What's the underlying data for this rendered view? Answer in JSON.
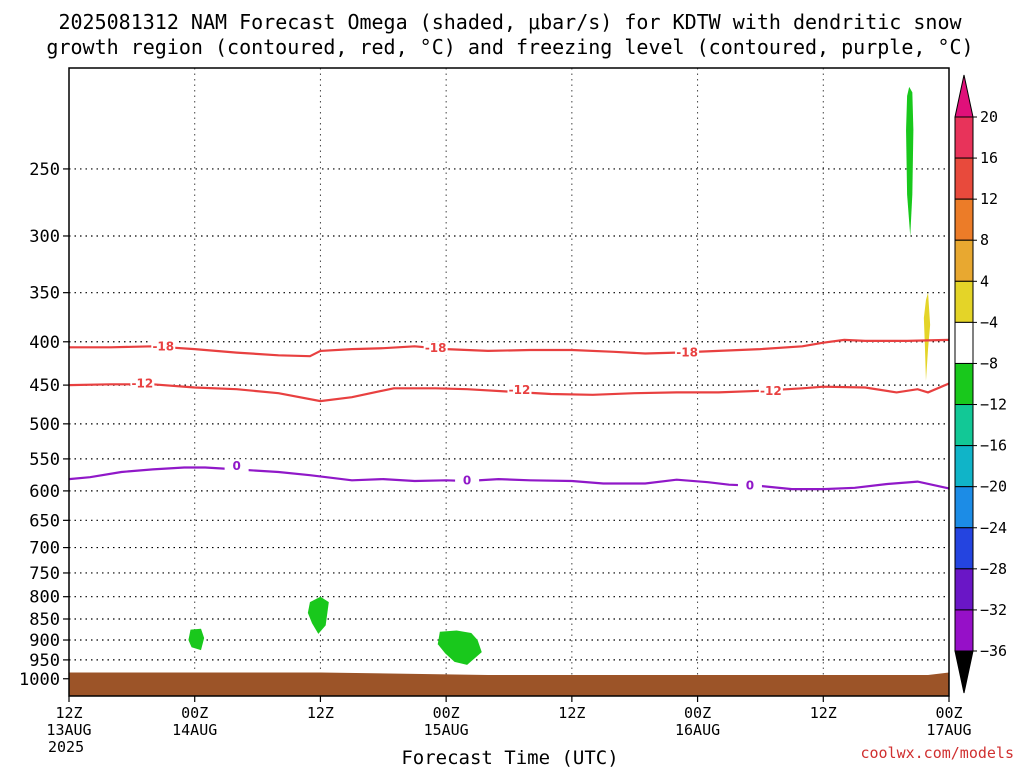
{
  "chart_data": {
    "type": "heatmap",
    "title_lines": [
      "2025081312 NAM Forecast Omega (shaded, μbar/s) for KDTW with dendritic snow",
      "growth region (contoured, red, °C) and freezing level (contoured, purple, °C)"
    ],
    "xlabel": "Forecast Time (UTC)",
    "credit": "coolwx.com/models",
    "x_range_hours": [
      0,
      84
    ],
    "y_log_pressure": true,
    "y_range_hPa": [
      1048,
      190
    ],
    "yticks": [
      {
        "p": 250,
        "label": "250"
      },
      {
        "p": 300,
        "label": "300"
      },
      {
        "p": 350,
        "label": "350"
      },
      {
        "p": 400,
        "label": "400"
      },
      {
        "p": 450,
        "label": "450"
      },
      {
        "p": 500,
        "label": "500"
      },
      {
        "p": 550,
        "label": "550"
      },
      {
        "p": 600,
        "label": "600"
      },
      {
        "p": 650,
        "label": "650"
      },
      {
        "p": 700,
        "label": "700"
      },
      {
        "p": 750,
        "label": "750"
      },
      {
        "p": 800,
        "label": "800"
      },
      {
        "p": 850,
        "label": "850"
      },
      {
        "p": 900,
        "label": "900"
      },
      {
        "p": 950,
        "label": "950"
      },
      {
        "p": 1000,
        "label": "1000"
      }
    ],
    "xticks": [
      {
        "h": 0,
        "lines": [
          "12Z",
          "13AUG",
          "2025"
        ]
      },
      {
        "h": 12,
        "lines": [
          "00Z",
          "14AUG"
        ]
      },
      {
        "h": 24,
        "lines": [
          "12Z"
        ]
      },
      {
        "h": 36,
        "lines": [
          "00Z",
          "15AUG"
        ]
      },
      {
        "h": 48,
        "lines": [
          "12Z"
        ]
      },
      {
        "h": 60,
        "lines": [
          "00Z",
          "16AUG"
        ]
      },
      {
        "h": 72,
        "lines": [
          "12Z"
        ]
      },
      {
        "h": 84,
        "lines": [
          "00Z",
          "17AUG"
        ]
      }
    ],
    "colorbar": {
      "levels": [
        {
          "label": "20",
          "color": "#e8335a"
        },
        {
          "label": "16",
          "color": "#e84a3c"
        },
        {
          "label": "12",
          "color": "#ec7c28"
        },
        {
          "label": "8",
          "color": "#e8a830"
        },
        {
          "label": "4",
          "color": "#e4d428"
        },
        {
          "label": "−4",
          "color": "#ffffff"
        },
        {
          "label": "−8",
          "color": "#19c81c"
        },
        {
          "label": "−12",
          "color": "#12c896"
        },
        {
          "label": "−16",
          "color": "#10b4c8"
        },
        {
          "label": "−20",
          "color": "#1c8ce6"
        },
        {
          "label": "−24",
          "color": "#2444e0"
        },
        {
          "label": "−28",
          "color": "#6a16c6"
        },
        {
          "label": "−32",
          "color": "#9610c8"
        },
        {
          "label": "−36",
          "color": "#a8a8a8"
        }
      ],
      "top_arrow_color": "#e0107a",
      "bottom_arrow_color": "#000000"
    },
    "series": [
      {
        "name": "-18",
        "color": "#e84040",
        "label_points": [
          [
            9,
            405
          ],
          [
            35,
            407
          ],
          [
            59,
            412
          ]
        ],
        "points": [
          [
            0,
            406
          ],
          [
            4,
            406
          ],
          [
            8,
            405
          ],
          [
            12,
            408
          ],
          [
            16,
            412
          ],
          [
            20,
            415
          ],
          [
            23,
            416
          ],
          [
            24,
            410
          ],
          [
            27,
            408
          ],
          [
            30,
            407
          ],
          [
            33,
            405
          ],
          [
            36,
            408
          ],
          [
            40,
            410
          ],
          [
            44,
            409
          ],
          [
            48,
            409
          ],
          [
            52,
            411
          ],
          [
            55,
            413
          ],
          [
            58,
            412
          ],
          [
            62,
            410
          ],
          [
            66,
            408
          ],
          [
            70,
            405
          ],
          [
            72,
            401
          ],
          [
            74,
            398
          ],
          [
            76,
            399
          ],
          [
            80,
            399
          ],
          [
            84,
            398
          ]
        ]
      },
      {
        "name": "-12",
        "color": "#e84040",
        "label_points": [
          [
            7,
            448
          ],
          [
            43,
            456
          ],
          [
            67,
            457
          ]
        ],
        "points": [
          [
            0,
            450
          ],
          [
            4,
            449
          ],
          [
            8,
            449
          ],
          [
            12,
            453
          ],
          [
            16,
            455
          ],
          [
            20,
            460
          ],
          [
            24,
            470
          ],
          [
            27,
            465
          ],
          [
            31,
            454
          ],
          [
            35,
            454
          ],
          [
            38,
            455
          ],
          [
            42,
            458
          ],
          [
            46,
            461
          ],
          [
            50,
            462
          ],
          [
            54,
            460
          ],
          [
            58,
            459
          ],
          [
            62,
            459
          ],
          [
            66,
            457
          ],
          [
            70,
            454
          ],
          [
            72,
            452
          ],
          [
            76,
            453
          ],
          [
            79,
            459
          ],
          [
            81,
            455
          ],
          [
            82,
            459
          ],
          [
            84,
            448
          ]
        ]
      },
      {
        "name": "0",
        "color": "#9018c8",
        "label_points": [
          [
            16,
            561
          ],
          [
            38,
            583
          ],
          [
            65,
            591
          ]
        ],
        "points": [
          [
            0,
            581
          ],
          [
            2,
            578
          ],
          [
            5,
            570
          ],
          [
            8,
            566
          ],
          [
            11,
            563
          ],
          [
            13,
            563
          ],
          [
            16,
            566
          ],
          [
            20,
            570
          ],
          [
            23,
            575
          ],
          [
            27,
            583
          ],
          [
            30,
            581
          ],
          [
            33,
            584
          ],
          [
            36,
            583
          ],
          [
            38,
            584
          ],
          [
            41,
            581
          ],
          [
            44,
            583
          ],
          [
            48,
            584
          ],
          [
            51,
            588
          ],
          [
            55,
            588
          ],
          [
            58,
            582
          ],
          [
            61,
            586
          ],
          [
            63,
            590
          ],
          [
            66,
            592
          ],
          [
            69,
            597
          ],
          [
            72,
            597
          ],
          [
            75,
            595
          ],
          [
            78,
            589
          ],
          [
            81,
            585
          ],
          [
            84,
            596
          ]
        ]
      }
    ],
    "omega_blobs": [
      {
        "level": "−8",
        "color": "#19c81c",
        "points": [
          [
            11.6,
            875
          ],
          [
            12.6,
            873
          ],
          [
            12.9,
            895
          ],
          [
            12.6,
            925
          ],
          [
            11.7,
            918
          ],
          [
            11.4,
            900
          ]
        ]
      },
      {
        "level": "−8",
        "color": "#19c81c",
        "points": [
          [
            23.0,
            812
          ],
          [
            24.0,
            800
          ],
          [
            24.8,
            812
          ],
          [
            24.5,
            865
          ],
          [
            23.8,
            885
          ],
          [
            23.2,
            860
          ],
          [
            22.8,
            836
          ]
        ]
      },
      {
        "level": "−8",
        "color": "#19c81c",
        "points": [
          [
            35.4,
            880
          ],
          [
            37.0,
            877
          ],
          [
            38.4,
            883
          ],
          [
            39.0,
            900
          ],
          [
            39.4,
            930
          ],
          [
            38.0,
            963
          ],
          [
            36.8,
            955
          ],
          [
            35.9,
            933
          ],
          [
            35.2,
            910
          ]
        ]
      },
      {
        "level": "−8",
        "color": "#19c81c",
        "points": [
          [
            80.2,
            200
          ],
          [
            80.5,
            203
          ],
          [
            80.6,
            225
          ],
          [
            80.5,
            268
          ],
          [
            80.3,
            300
          ],
          [
            80.0,
            268
          ],
          [
            79.9,
            225
          ],
          [
            80.0,
            205
          ]
        ]
      },
      {
        "level": "4",
        "color": "#e4d428",
        "points": [
          [
            81.8,
            357
          ],
          [
            82.0,
            350
          ],
          [
            82.2,
            382
          ],
          [
            82.0,
            408
          ],
          [
            81.8,
            445
          ],
          [
            81.7,
            405
          ],
          [
            81.6,
            375
          ]
        ]
      }
    ],
    "surface_fill": {
      "color": "#9c5428",
      "top_points": [
        [
          0,
          983
        ],
        [
          24,
          983
        ],
        [
          40,
          990
        ],
        [
          82,
          990
        ],
        [
          84,
          983
        ]
      ]
    }
  }
}
